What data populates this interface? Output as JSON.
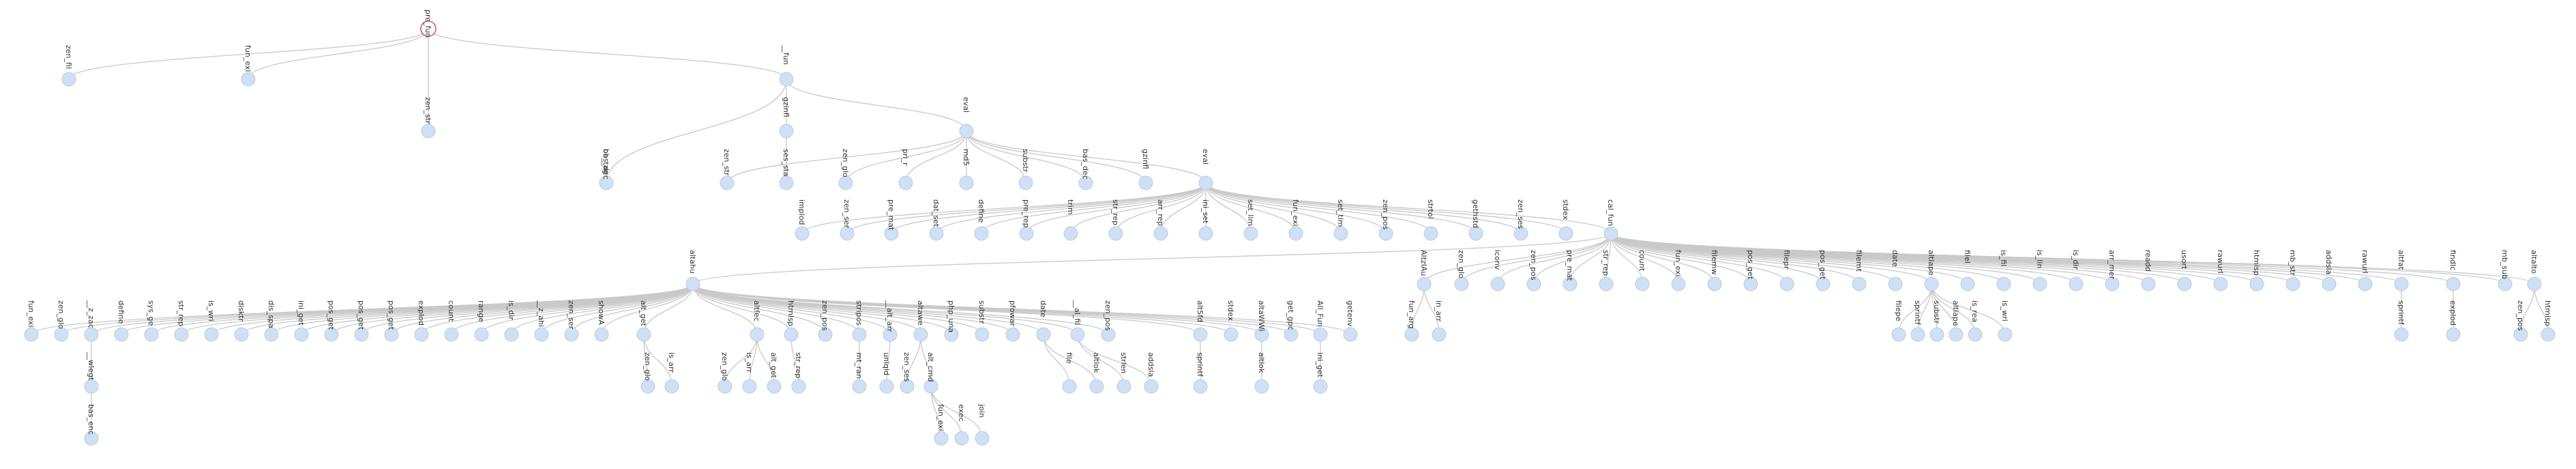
{
  "tree": {
    "root": {
      "id": "root",
      "label": "pre_fun"
    },
    "nodes": [
      {
        "id": "n1",
        "parent": "root",
        "label": "zen_fil"
      },
      {
        "id": "n2",
        "parent": "root",
        "label": "fun_exi"
      },
      {
        "id": "n3",
        "parent": "root",
        "label": "zen_str"
      },
      {
        "id": "n4",
        "parent": "root",
        "label": "__fun"
      },
      {
        "id": "n5",
        "parent": "n4",
        "label": "ob_tag"
      },
      {
        "id": "n6",
        "parent": "n4",
        "label": "gzinfl"
      },
      {
        "id": "n7",
        "parent": "n4",
        "label": "eval"
      },
      {
        "id": "n8",
        "parent": "n5",
        "label": "bas_dec"
      },
      {
        "id": "n9",
        "parent": "n6",
        "label": "ses_sta"
      },
      {
        "id": "n10",
        "parent": "n7",
        "label": "zen_str"
      },
      {
        "id": "n11",
        "parent": "n7",
        "label": "zen_glo"
      },
      {
        "id": "n12",
        "parent": "n7",
        "label": "pri_r"
      },
      {
        "id": "n13",
        "parent": "n7",
        "label": "md5"
      },
      {
        "id": "n14",
        "parent": "n7",
        "label": "substr"
      },
      {
        "id": "n15",
        "parent": "n7",
        "label": "bas_dec"
      },
      {
        "id": "n16",
        "parent": "n7",
        "label": "gzinfl"
      },
      {
        "id": "n17",
        "parent": "n7",
        "label": "eval"
      },
      {
        "id": "n18",
        "parent": "n17",
        "label": "implod"
      },
      {
        "id": "n19",
        "parent": "n17",
        "label": "zen_ser"
      },
      {
        "id": "n20",
        "parent": "n17",
        "label": "pre_mat"
      },
      {
        "id": "n21",
        "parent": "n17",
        "label": "dat_set"
      },
      {
        "id": "n22",
        "parent": "n17",
        "label": "define"
      },
      {
        "id": "n23",
        "parent": "n17",
        "label": "pre_rep"
      },
      {
        "id": "n24",
        "parent": "n17",
        "label": "trim"
      },
      {
        "id": "n25",
        "parent": "n17",
        "label": "str_rep"
      },
      {
        "id": "n26",
        "parent": "n17",
        "label": "arr_rep"
      },
      {
        "id": "n27",
        "parent": "n17",
        "label": "ini_set"
      },
      {
        "id": "n28",
        "parent": "n17",
        "label": "set_lim"
      },
      {
        "id": "n29",
        "parent": "n17",
        "label": "fun_exi"
      },
      {
        "id": "n30",
        "parent": "n17",
        "label": "set_tim"
      },
      {
        "id": "n31",
        "parent": "n17",
        "label": "zen_pos"
      },
      {
        "id": "n32",
        "parent": "n17",
        "label": "strtol"
      },
      {
        "id": "n33",
        "parent": "n17",
        "label": "gethstd"
      },
      {
        "id": "n34",
        "parent": "n17",
        "label": "zen_ses"
      },
      {
        "id": "n35",
        "parent": "n17",
        "label": "stdex"
      },
      {
        "id": "n36",
        "parent": "n17",
        "label": "cal_fun"
      },
      {
        "id": "n37",
        "parent": "n36",
        "label": "AltzIAu"
      },
      {
        "id": "n38",
        "parent": "n36",
        "label": "zen_glo"
      },
      {
        "id": "n39",
        "parent": "n36",
        "label": "iconv"
      },
      {
        "id": "n40",
        "parent": "n36",
        "label": "zen_pos"
      },
      {
        "id": "n41",
        "parent": "n36",
        "label": "pre_mat"
      },
      {
        "id": "n42",
        "parent": "n36",
        "label": "str_rep"
      },
      {
        "id": "n43",
        "parent": "n36",
        "label": "count"
      },
      {
        "id": "n44",
        "parent": "n36",
        "label": "fun_exi"
      },
      {
        "id": "n45",
        "parent": "n36",
        "label": "filemw"
      },
      {
        "id": "n46",
        "parent": "n36",
        "label": "pos_get"
      },
      {
        "id": "n47",
        "parent": "n36",
        "label": "filepr"
      },
      {
        "id": "n48",
        "parent": "n36",
        "label": "pos_get"
      },
      {
        "id": "n49",
        "parent": "n36",
        "label": "filemt"
      },
      {
        "id": "n50",
        "parent": "n36",
        "label": "date"
      },
      {
        "id": "n51",
        "parent": "n36",
        "label": "altlape"
      },
      {
        "id": "n52",
        "parent": "n36",
        "label": "filel"
      },
      {
        "id": "n53",
        "parent": "n36",
        "label": "is_fil"
      },
      {
        "id": "n54",
        "parent": "n36",
        "label": "is_lin"
      },
      {
        "id": "n55",
        "parent": "n36",
        "label": "is_dir"
      },
      {
        "id": "n56",
        "parent": "n36",
        "label": "arr_mer"
      },
      {
        "id": "n57",
        "parent": "n36",
        "label": "readd"
      },
      {
        "id": "n58",
        "parent": "n36",
        "label": "usort"
      },
      {
        "id": "n59",
        "parent": "n36",
        "label": "rawurl"
      },
      {
        "id": "n60",
        "parent": "n36",
        "label": "htmlsp"
      },
      {
        "id": "n61",
        "parent": "n36",
        "label": "mb_str"
      },
      {
        "id": "n62",
        "parent": "n36",
        "label": "addsla"
      },
      {
        "id": "n63",
        "parent": "n36",
        "label": "rawurl"
      },
      {
        "id": "n64",
        "parent": "n36",
        "label": "altfat"
      },
      {
        "id": "n65",
        "parent": "n36",
        "label": "findlc"
      },
      {
        "id": "n66",
        "parent": "n36",
        "label": "mb_sub"
      },
      {
        "id": "n67",
        "parent": "n36",
        "label": "altalto"
      },
      {
        "id": "n68",
        "parent": "n37",
        "label": "fun_arg"
      },
      {
        "id": "n69",
        "parent": "n37",
        "label": "in_arr"
      },
      {
        "id": "n70",
        "parent": "n51",
        "label": "filepe"
      },
      {
        "id": "n71",
        "parent": "n51",
        "label": "sprintf"
      },
      {
        "id": "n72",
        "parent": "n51",
        "label": "substr"
      },
      {
        "id": "n73",
        "parent": "n51",
        "label": "altlape"
      },
      {
        "id": "n74",
        "parent": "n51",
        "label": "is_rea"
      },
      {
        "id": "n75",
        "parent": "n51",
        "label": "is_wri"
      },
      {
        "id": "n76",
        "parent": "n64",
        "label": "sprintf"
      },
      {
        "id": "n77",
        "parent": "n65",
        "label": "explod"
      },
      {
        "id": "n78",
        "parent": "n67",
        "label": "zen_pos"
      },
      {
        "id": "n79",
        "parent": "n67",
        "label": "htmlsp"
      },
      {
        "id": "n80",
        "parent": "n36",
        "label": "altahu"
      },
      {
        "id": "n81",
        "parent": "n80",
        "label": "fun_exi"
      },
      {
        "id": "n82",
        "parent": "n80",
        "label": "zen_glo"
      },
      {
        "id": "n83",
        "parent": "n80",
        "label": "__z_zac"
      },
      {
        "id": "n84",
        "parent": "n80",
        "label": "define"
      },
      {
        "id": "n85",
        "parent": "n80",
        "label": "sys_ge"
      },
      {
        "id": "n86",
        "parent": "n80",
        "label": "str_rep"
      },
      {
        "id": "n87",
        "parent": "n80",
        "label": "is_wri"
      },
      {
        "id": "n88",
        "parent": "n80",
        "label": "disktr"
      },
      {
        "id": "n89",
        "parent": "n80",
        "label": "dis_spa"
      },
      {
        "id": "n90",
        "parent": "n80",
        "label": "ini_get"
      },
      {
        "id": "n91",
        "parent": "n80",
        "label": "pos_get"
      },
      {
        "id": "n92",
        "parent": "n80",
        "label": "pos_get"
      },
      {
        "id": "n93",
        "parent": "n80",
        "label": "pos_get"
      },
      {
        "id": "n94",
        "parent": "n80",
        "label": "explod"
      },
      {
        "id": "n95",
        "parent": "n80",
        "label": "count"
      },
      {
        "id": "n96",
        "parent": "n80",
        "label": "range"
      },
      {
        "id": "n97",
        "parent": "n80",
        "label": "is_dir"
      },
      {
        "id": "n98",
        "parent": "n80",
        "label": "__z_ahi"
      },
      {
        "id": "n99",
        "parent": "n80",
        "label": "zen_ser"
      },
      {
        "id": "n100",
        "parent": "n80",
        "label": "showA"
      },
      {
        "id": "n101",
        "parent": "n80",
        "label": "alt_get"
      },
      {
        "id": "n102",
        "parent": "n80",
        "label": "altfec"
      },
      {
        "id": "n103",
        "parent": "n80",
        "label": "htmlsp"
      },
      {
        "id": "n104",
        "parent": "n80",
        "label": "zen_pos"
      },
      {
        "id": "n105",
        "parent": "n80",
        "label": "stripos"
      },
      {
        "id": "n106",
        "parent": "n80",
        "label": "__alt_arr"
      },
      {
        "id": "n107",
        "parent": "n80",
        "label": "altawe"
      },
      {
        "id": "n108",
        "parent": "n80",
        "label": "php_una"
      },
      {
        "id": "n109",
        "parent": "n80",
        "label": "substr"
      },
      {
        "id": "n110",
        "parent": "n80",
        "label": "pfowar"
      },
      {
        "id": "n111",
        "parent": "n80",
        "label": "date"
      },
      {
        "id": "n112",
        "parent": "n80",
        "label": "__al_fil"
      },
      {
        "id": "n113",
        "parent": "n80",
        "label": "zen_pos"
      },
      {
        "id": "n114",
        "parent": "n80",
        "label": "altSfd"
      },
      {
        "id": "n115",
        "parent": "n80",
        "label": "stdex"
      },
      {
        "id": "n116",
        "parent": "n80",
        "label": "altaWWi"
      },
      {
        "id": "n117",
        "parent": "n80",
        "label": "get_gpc"
      },
      {
        "id": "n118",
        "parent": "n80",
        "label": "All_Fun"
      },
      {
        "id": "n119",
        "parent": "n80",
        "label": "getenv"
      },
      {
        "id": "n120",
        "parent": "n83",
        "label": "__wlegt"
      },
      {
        "id": "n121",
        "parent": "n120",
        "label": "bas_enc"
      },
      {
        "id": "n122",
        "parent": "n101",
        "label": "zen_glo"
      },
      {
        "id": "n123",
        "parent": "n101",
        "label": "is_arr"
      },
      {
        "id": "n124",
        "parent": "n102",
        "label": "zen_glo"
      },
      {
        "id": "n125",
        "parent": "n102",
        "label": "is_arr"
      },
      {
        "id": "n126",
        "parent": "n102",
        "label": "alt_get"
      },
      {
        "id": "n127",
        "parent": "n103",
        "label": "str_rep"
      },
      {
        "id": "n128",
        "parent": "n105",
        "label": "mt_ran"
      },
      {
        "id": "n129",
        "parent": "n106",
        "label": "uniqid"
      },
      {
        "id": "n130",
        "parent": "n107",
        "label": "zen_ses"
      },
      {
        "id": "n131",
        "parent": "n107",
        "label": "alt_cmd"
      },
      {
        "id": "n132",
        "parent": "n131",
        "label": "fun_exi"
      },
      {
        "id": "n133",
        "parent": "n131",
        "label": "exec"
      },
      {
        "id": "n134",
        "parent": "n131",
        "label": "join"
      },
      {
        "id": "n135",
        "parent": "n111",
        "label": "file"
      },
      {
        "id": "n136",
        "parent": "n111",
        "label": "altlok"
      },
      {
        "id": "n137",
        "parent": "n112",
        "label": "strlen"
      },
      {
        "id": "n138",
        "parent": "n112",
        "label": "addsla"
      },
      {
        "id": "n139",
        "parent": "n114",
        "label": "sprintf"
      },
      {
        "id": "n140",
        "parent": "n116",
        "label": "altlok"
      },
      {
        "id": "n141",
        "parent": "n118",
        "label": "ini_get"
      }
    ]
  },
  "colors": {
    "node_fill": "#cfe0f3",
    "root_stroke": "#d45a6a",
    "link": "#c9c9c9",
    "text": "#333333"
  }
}
